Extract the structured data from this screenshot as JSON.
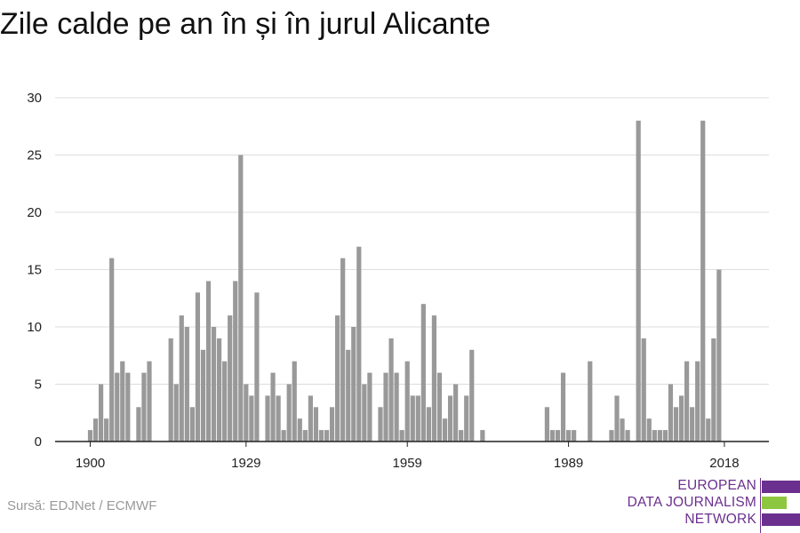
{
  "chart_data": {
    "type": "bar",
    "title": "Zile calde pe an în și în jurul Alicante",
    "xlabel": "",
    "ylabel": "",
    "ylim": [
      0,
      30
    ],
    "yticks": [
      0,
      5,
      10,
      15,
      20,
      25,
      30
    ],
    "xticks": [
      1900,
      1929,
      1959,
      1989,
      2018
    ],
    "x": [
      1900,
      1901,
      1902,
      1903,
      1904,
      1905,
      1906,
      1907,
      1908,
      1909,
      1910,
      1911,
      1912,
      1913,
      1914,
      1915,
      1916,
      1917,
      1918,
      1919,
      1920,
      1921,
      1922,
      1923,
      1924,
      1925,
      1926,
      1927,
      1928,
      1929,
      1930,
      1931,
      1932,
      1933,
      1934,
      1935,
      1936,
      1937,
      1938,
      1939,
      1940,
      1941,
      1942,
      1943,
      1944,
      1945,
      1946,
      1947,
      1948,
      1949,
      1950,
      1951,
      1952,
      1953,
      1954,
      1955,
      1956,
      1957,
      1958,
      1959,
      1960,
      1961,
      1962,
      1963,
      1964,
      1965,
      1966,
      1967,
      1968,
      1969,
      1970,
      1971,
      1972,
      1973,
      1974,
      1975,
      1976,
      1977,
      1978,
      1979,
      1980,
      1981,
      1982,
      1983,
      1984,
      1985,
      1986,
      1987,
      1988,
      1989,
      1990,
      1991,
      1992,
      1993,
      1994,
      1995,
      1996,
      1997,
      1998,
      1999,
      2000,
      2001,
      2002,
      2003,
      2004,
      2005,
      2006,
      2007,
      2008,
      2009,
      2010,
      2011,
      2012,
      2013,
      2014,
      2015,
      2016,
      2017,
      2018,
      2019
    ],
    "values": [
      1,
      2,
      5,
      2,
      16,
      6,
      7,
      6,
      0,
      3,
      6,
      7,
      0,
      0,
      0,
      9,
      5,
      11,
      10,
      3,
      13,
      8,
      14,
      10,
      9,
      7,
      11,
      14,
      25,
      5,
      4,
      13,
      0,
      4,
      6,
      4,
      1,
      5,
      7,
      2,
      1,
      4,
      3,
      1,
      1,
      3,
      11,
      16,
      8,
      10,
      17,
      5,
      6,
      0,
      3,
      6,
      9,
      6,
      1,
      7,
      4,
      4,
      12,
      3,
      11,
      6,
      2,
      4,
      5,
      1,
      4,
      8,
      0,
      1,
      0,
      0,
      0,
      0,
      0,
      0,
      0,
      0,
      0,
      0,
      0,
      3,
      1,
      1,
      6,
      1,
      1,
      0,
      0,
      7,
      0,
      0,
      0,
      1,
      4,
      2,
      1,
      0,
      28,
      9,
      2,
      1,
      1,
      1,
      5,
      3,
      4,
      7,
      3,
      7,
      28,
      2,
      9,
      15,
      0,
      0
    ],
    "color": "#999999",
    "source": "Sursă: EDJNet / ECMWF",
    "logo": {
      "lines": [
        "EUROPEAN",
        "DATA JOURNALISM",
        "NETWORK"
      ],
      "colors": [
        "#6b2f8f",
        "#8dc63f"
      ]
    }
  }
}
